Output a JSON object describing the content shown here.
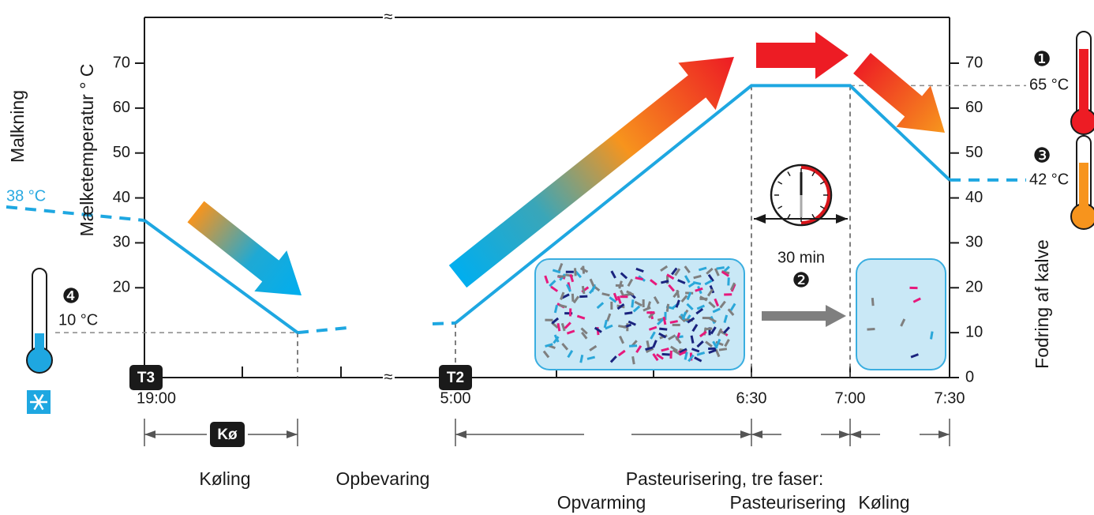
{
  "y_axis": {
    "left_label": "Mælketemperatur ° C",
    "right_label": "Fodring af kalve",
    "left_ticks": [
      20,
      30,
      40,
      50,
      60,
      70
    ],
    "right_ticks": [
      0,
      10,
      20,
      30,
      40,
      50,
      60,
      70
    ]
  },
  "x_axis": {
    "ticks": [
      "19:00",
      "5:00",
      "6:30",
      "7:00",
      "7:30"
    ]
  },
  "annotations": {
    "milking": "Malkning",
    "milk_temp": "38 °C",
    "cool_temp": "10 °C",
    "past_temp": "65 °C",
    "feed_temp": "42 °C",
    "hold_time": "30 min",
    "markers": [
      "❶",
      "❷",
      "❸",
      "❹"
    ]
  },
  "badges": [
    "T3",
    "T2",
    "Kø"
  ],
  "phases": {
    "cooling": "Køling",
    "storage": "Opbevaring",
    "pasteurization": {
      "title": "Pasteurisering, tre faser:",
      "steps": [
        "Opvarming",
        "Pasteurisering",
        "Køling"
      ]
    }
  }
}
